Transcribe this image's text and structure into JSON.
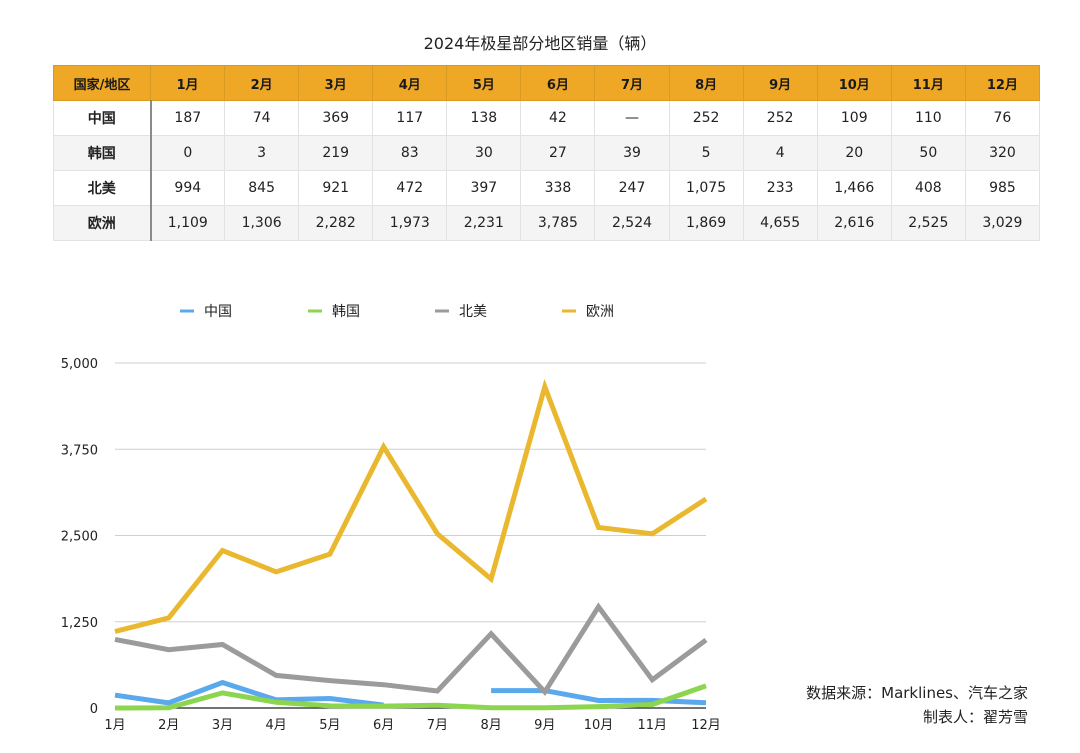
{
  "table": {
    "title": "2024年极星部分地区销量（辆）",
    "header_first": "国家/地区",
    "months": [
      "1月",
      "2月",
      "3月",
      "4月",
      "5月",
      "6月",
      "7月",
      "8月",
      "9月",
      "10月",
      "11月",
      "12月"
    ],
    "rows": [
      {
        "region": "中国",
        "cells": [
          "187",
          "74",
          "369",
          "117",
          "138",
          "42",
          "—",
          "252",
          "252",
          "109",
          "110",
          "76"
        ]
      },
      {
        "region": "韩国",
        "cells": [
          "0",
          "3",
          "219",
          "83",
          "30",
          "27",
          "39",
          "5",
          "4",
          "20",
          "50",
          "320"
        ]
      },
      {
        "region": "北美",
        "cells": [
          "994",
          "845",
          "921",
          "472",
          "397",
          "338",
          "247",
          "1,075",
          "233",
          "1,466",
          "408",
          "985"
        ]
      },
      {
        "region": "欧洲",
        "cells": [
          "1,109",
          "1,306",
          "2,282",
          "1,973",
          "2,231",
          "3,785",
          "2,524",
          "1,869",
          "4,655",
          "2,616",
          "2,525",
          "3,029"
        ]
      }
    ]
  },
  "chart_data": {
    "type": "line",
    "categories": [
      "1月",
      "2月",
      "3月",
      "4月",
      "5月",
      "6月",
      "7月",
      "8月",
      "9月",
      "10月",
      "11月",
      "12月"
    ],
    "series": [
      {
        "name": "中国",
        "color": "#5aa9ec",
        "values": [
          187,
          74,
          369,
          117,
          138,
          42,
          null,
          252,
          252,
          109,
          110,
          76
        ]
      },
      {
        "name": "韩国",
        "color": "#8cd54e",
        "values": [
          0,
          3,
          219,
          83,
          30,
          27,
          39,
          5,
          4,
          20,
          50,
          320
        ]
      },
      {
        "name": "北美",
        "color": "#9b9b9b",
        "values": [
          994,
          845,
          921,
          472,
          397,
          338,
          247,
          1075,
          233,
          1466,
          408,
          985
        ]
      },
      {
        "name": "欧洲",
        "color": "#e9b82e",
        "values": [
          1109,
          1306,
          2282,
          1973,
          2231,
          3785,
          2524,
          1869,
          4655,
          2616,
          2525,
          3029
        ]
      }
    ],
    "yticks": [
      "0",
      "1,250",
      "2,500",
      "3,750",
      "5,000"
    ],
    "ytick_values": [
      0,
      1250,
      2500,
      3750,
      5000
    ],
    "ylim": [
      0,
      5000
    ],
    "grid": true,
    "legend_position": "top"
  },
  "source": {
    "line1": "数据来源：Marklines、汽车之家",
    "line2": "制表人：翟芳雪"
  }
}
